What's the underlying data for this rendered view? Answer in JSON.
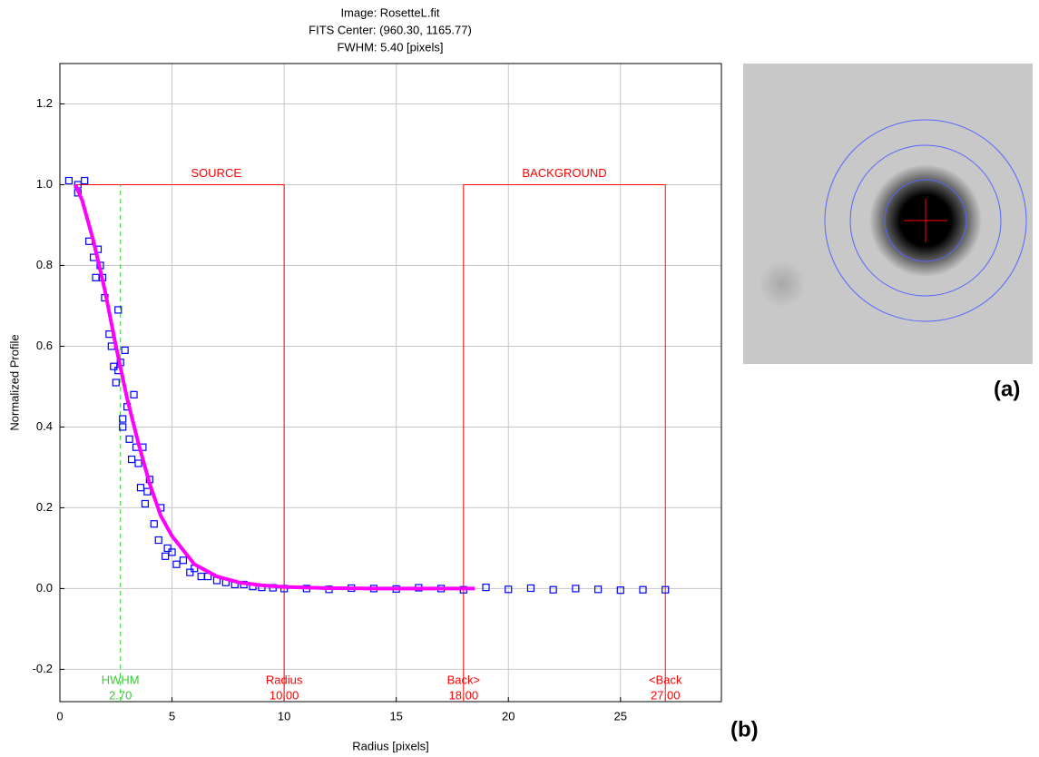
{
  "chart_data": {
    "type": "scatter",
    "title": [
      "Image: RosetteL.fit",
      "FITS Center: (960.30, 1165.77)",
      "FWHM: 5.40 [pixels]"
    ],
    "x_label": "Radius [pixels]",
    "y_label": "Normalized Profile",
    "xlim": [
      0,
      29.5
    ],
    "ylim": [
      -0.28,
      1.3
    ],
    "xticks": [
      0,
      5,
      10,
      15,
      20,
      25
    ],
    "yticks": [
      {
        "value": -0.2,
        "label": "-0.2"
      },
      {
        "value": 0,
        "label": "0.0"
      },
      {
        "value": 0.2,
        "label": "0.2"
      },
      {
        "value": 0.4,
        "label": "0.4"
      },
      {
        "value": 0.6,
        "label": "0.6"
      },
      {
        "value": 0.8,
        "label": "0.8"
      },
      {
        "value": 1,
        "label": "1.0"
      },
      {
        "value": 1.2,
        "label": "1.2"
      }
    ],
    "grid": true,
    "series": [
      {
        "type": "scatter",
        "color": "#0000ff",
        "x": [
          0.4,
          0.8,
          1.1,
          0.8,
          1.3,
          1.5,
          1.6,
          1.8,
          1.9,
          1.7,
          2.0,
          2.2,
          2.3,
          2.4,
          2.5,
          2.6,
          2.7,
          2.8,
          2.9,
          2.6,
          2.8,
          3.0,
          3.1,
          3.2,
          3.3,
          3.4,
          3.5,
          3.6,
          3.7,
          3.8,
          3.9,
          4.0,
          4.2,
          4.4,
          4.5,
          4.7,
          4.8,
          5.0,
          5.2,
          5.5,
          5.8,
          6.0,
          6.3,
          6.6,
          7.0,
          7.4,
          7.8,
          8.2,
          8.6,
          9.0,
          9.5,
          10,
          11,
          12,
          13,
          14,
          15,
          16,
          17,
          18,
          19,
          20,
          21,
          22,
          23,
          24,
          25,
          26,
          27
        ],
        "values": [
          1.01,
          0.98,
          1.01,
          1.0,
          0.86,
          0.82,
          0.77,
          0.8,
          0.77,
          0.84,
          0.72,
          0.63,
          0.6,
          0.55,
          0.51,
          0.69,
          0.56,
          0.42,
          0.59,
          0.54,
          0.4,
          0.45,
          0.37,
          0.32,
          0.48,
          0.35,
          0.31,
          0.25,
          0.35,
          0.21,
          0.24,
          0.27,
          0.16,
          0.12,
          0.2,
          0.08,
          0.1,
          0.09,
          0.06,
          0.07,
          0.04,
          0.05,
          0.03,
          0.03,
          0.02,
          0.015,
          0.01,
          0.01,
          0.005,
          0.003,
          0.002,
          0,
          0,
          -0.002,
          0.001,
          0,
          -0.001,
          0.002,
          0,
          -0.003,
          0.003,
          -0.002,
          0.001,
          -0.003,
          0,
          -0.002,
          -0.004,
          -0.003,
          -0.003
        ]
      },
      {
        "type": "line",
        "color": "#ff00ff",
        "x": [
          0.7,
          1,
          1.5,
          2,
          2.5,
          3,
          3.5,
          4,
          4.5,
          5,
          6,
          7,
          8,
          9,
          10,
          12,
          14,
          16,
          18.5
        ],
        "values": [
          1.0,
          0.96,
          0.86,
          0.74,
          0.6,
          0.47,
          0.36,
          0.26,
          0.18,
          0.13,
          0.06,
          0.03,
          0.015,
          0.008,
          0.004,
          0.001,
          0,
          0,
          0
        ]
      }
    ],
    "regions": [
      {
        "label": "SOURCE",
        "from": 0.7,
        "to": 10,
        "top": 1.0,
        "color": "#ff0000"
      },
      {
        "label": "BACKGROUND",
        "from": 18,
        "to": 27,
        "top": 1.0,
        "color": "#ff0000"
      }
    ],
    "markers": [
      {
        "name": "HWHM",
        "value": 2.7,
        "value_label": "2.70",
        "color": "#33cc33",
        "dashed": true
      },
      {
        "name": "Radius",
        "value": 10,
        "value_label": "10.00",
        "color": "#ff0000",
        "dashed": false
      },
      {
        "name": "Back>",
        "value": 18,
        "value_label": "18.00",
        "color": "#ff0000",
        "dashed": false
      },
      {
        "name": "<Back",
        "value": 27,
        "value_label": "27.00",
        "color": "#ff0000",
        "dashed": false
      }
    ]
  },
  "panel_labels": {
    "image": "(a)",
    "plot": "(b)"
  }
}
